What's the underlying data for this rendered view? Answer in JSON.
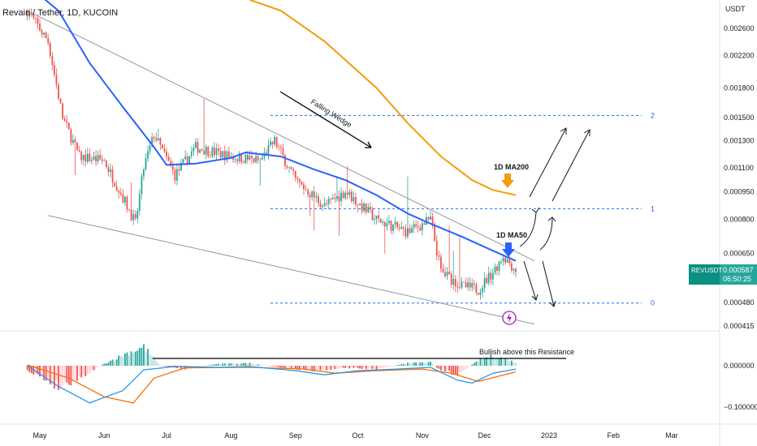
{
  "header": {
    "title": "Revain / Tether, 1D, KUCOIN",
    "currency": "USDT"
  },
  "colors": {
    "up": "#26a69a",
    "down": "#ef5350",
    "ma50": "#2962ff",
    "ma200": "#f29d0c",
    "level": "#2962ff",
    "wedge": "#9598a1",
    "macd": "#2196f3",
    "signal": "#ff6d00",
    "hist_up_strong": "#26a69a",
    "hist_up_weak": "#b2dfdb",
    "hist_down_strong": "#ef5350",
    "hist_down_weak": "#ffcdd2"
  },
  "chart_data": [
    {
      "type": "candlestick",
      "title": "Revain / Tether, 1D, KUCOIN",
      "symbol": "REVUSDT",
      "last_price": "0.000587",
      "countdown": "06:50:25",
      "ylim": [
        0.000405,
        0.00292
      ],
      "y_scale": "log",
      "y_ticks": [
        "0.002600",
        "0.002200",
        "0.001800",
        "0.001500",
        "0.001300",
        "0.001100",
        "0.000950",
        "0.000800",
        "0.000650",
        "0.000480",
        "0.000415"
      ],
      "x_labels": [
        "May",
        "Jun",
        "Jul",
        "Aug",
        "Sep",
        "Oct",
        "Nov",
        "Dec",
        "2023",
        "Feb",
        "Mar"
      ],
      "price_anchors": [
        {
          "date": "2022-04-25",
          "price": 0.0029
        },
        {
          "date": "2022-05-05",
          "price": 0.0024
        },
        {
          "date": "2022-05-12",
          "price": 0.0015
        },
        {
          "date": "2022-05-20",
          "price": 0.00118
        },
        {
          "date": "2022-06-01",
          "price": 0.00115
        },
        {
          "date": "2022-06-13",
          "price": 0.00085
        },
        {
          "date": "2022-06-16",
          "price": 0.00078
        },
        {
          "date": "2022-06-20",
          "price": 0.0011
        },
        {
          "date": "2022-06-25",
          "price": 0.00135
        },
        {
          "date": "2022-07-05",
          "price": 0.00105
        },
        {
          "date": "2022-07-15",
          "price": 0.00125
        },
        {
          "date": "2022-08-01",
          "price": 0.00118
        },
        {
          "date": "2022-08-15",
          "price": 0.00115
        },
        {
          "date": "2022-08-22",
          "price": 0.0013
        },
        {
          "date": "2022-09-01",
          "price": 0.00102
        },
        {
          "date": "2022-09-15",
          "price": 0.00087
        },
        {
          "date": "2022-09-25",
          "price": 0.00095
        },
        {
          "date": "2022-10-10",
          "price": 0.0008
        },
        {
          "date": "2022-10-25",
          "price": 0.00074
        },
        {
          "date": "2022-11-05",
          "price": 0.0008
        },
        {
          "date": "2022-11-10",
          "price": 0.00058
        },
        {
          "date": "2022-11-20",
          "price": 0.00053
        },
        {
          "date": "2022-11-28",
          "price": 0.00052
        },
        {
          "date": "2022-12-05",
          "price": 0.00058
        },
        {
          "date": "2022-12-10",
          "price": 0.00064
        },
        {
          "date": "2022-12-16",
          "price": 0.000587
        }
      ],
      "ma50": [
        {
          "date": "2022-04-25",
          "price": 0.0034
        },
        {
          "date": "2022-05-10",
          "price": 0.0029
        },
        {
          "date": "2022-05-25",
          "price": 0.0021
        },
        {
          "date": "2022-06-10",
          "price": 0.0016
        },
        {
          "date": "2022-06-25",
          "price": 0.00125
        },
        {
          "date": "2022-07-01",
          "price": 0.00112
        },
        {
          "date": "2022-07-15",
          "price": 0.00113
        },
        {
          "date": "2022-08-01",
          "price": 0.00117
        },
        {
          "date": "2022-08-08",
          "price": 0.00121
        },
        {
          "date": "2022-08-25",
          "price": 0.00118
        },
        {
          "date": "2022-09-10",
          "price": 0.00109
        },
        {
          "date": "2022-09-25",
          "price": 0.00102
        },
        {
          "date": "2022-10-10",
          "price": 0.00093
        },
        {
          "date": "2022-10-25",
          "price": 0.00083
        },
        {
          "date": "2022-11-05",
          "price": 0.00078
        },
        {
          "date": "2022-11-20",
          "price": 0.00072
        },
        {
          "date": "2022-12-05",
          "price": 0.00066
        },
        {
          "date": "2022-12-16",
          "price": 0.00062
        }
      ],
      "ma200": [
        {
          "date": "2022-08-10",
          "price": 0.0031
        },
        {
          "date": "2022-08-25",
          "price": 0.0029
        },
        {
          "date": "2022-09-15",
          "price": 0.0024
        },
        {
          "date": "2022-10-10",
          "price": 0.0018
        },
        {
          "date": "2022-10-25",
          "price": 0.00145
        },
        {
          "date": "2022-11-10",
          "price": 0.00118
        },
        {
          "date": "2022-11-25",
          "price": 0.00102
        },
        {
          "date": "2022-12-05",
          "price": 0.00096
        },
        {
          "date": "2022-12-16",
          "price": 0.00093
        }
      ],
      "levels": [
        {
          "label": "2",
          "price": 0.00152
        },
        {
          "label": "1",
          "price": 0.000855
        },
        {
          "label": "0",
          "price": 0.000478
        }
      ],
      "wedge": [
        {
          "from": {
            "date": "2022-04-25",
            "price": 0.0029
          },
          "to": {
            "date": "2022-12-25",
            "price": 0.00062
          }
        },
        {
          "from": {
            "date": "2022-05-05",
            "price": 0.00082
          },
          "to": {
            "date": "2022-12-25",
            "price": 0.00042
          }
        }
      ],
      "annotations": {
        "falling_wedge": "Falling Wedge",
        "ma200_label": "1D MA200",
        "ma50_label": "1D MA50"
      }
    },
    {
      "type": "macd",
      "ylim": [
        -0.12,
        0.06
      ],
      "y_ticks": [
        "0.000000",
        "−0.100000"
      ],
      "resistance_value": 0.014,
      "resistance_label": "Bullish above this Resistance",
      "hist_anchors": [
        {
          "date": "2022-04-25",
          "value": -0.01
        },
        {
          "date": "2022-05-10",
          "value": -0.05
        },
        {
          "date": "2022-05-20",
          "value": -0.03
        },
        {
          "date": "2022-06-01",
          "value": 0.005
        },
        {
          "date": "2022-06-12",
          "value": 0.03
        },
        {
          "date": "2022-06-20",
          "value": 0.045
        },
        {
          "date": "2022-06-28",
          "value": 0.0
        },
        {
          "date": "2022-07-10",
          "value": -0.008
        },
        {
          "date": "2022-07-25",
          "value": 0.004
        },
        {
          "date": "2022-08-10",
          "value": 0.006
        },
        {
          "date": "2022-08-25",
          "value": -0.004
        },
        {
          "date": "2022-09-10",
          "value": -0.012
        },
        {
          "date": "2022-09-25",
          "value": -0.005
        },
        {
          "date": "2022-10-10",
          "value": -0.008
        },
        {
          "date": "2022-10-25",
          "value": 0.006
        },
        {
          "date": "2022-11-05",
          "value": 0.008
        },
        {
          "date": "2022-11-10",
          "value": -0.012
        },
        {
          "date": "2022-11-18",
          "value": -0.02
        },
        {
          "date": "2022-11-28",
          "value": 0.012
        },
        {
          "date": "2022-12-05",
          "value": 0.024
        },
        {
          "date": "2022-12-16",
          "value": 0.008
        }
      ],
      "macd": [
        {
          "date": "2022-04-25",
          "value": 0.0
        },
        {
          "date": "2022-05-10",
          "value": -0.05
        },
        {
          "date": "2022-05-25",
          "value": -0.09
        },
        {
          "date": "2022-06-10",
          "value": -0.06
        },
        {
          "date": "2022-06-20",
          "value": -0.01
        },
        {
          "date": "2022-07-05",
          "value": -0.002
        },
        {
          "date": "2022-07-25",
          "value": -0.004
        },
        {
          "date": "2022-08-10",
          "value": -0.002
        },
        {
          "date": "2022-09-01",
          "value": -0.012
        },
        {
          "date": "2022-09-15",
          "value": -0.022
        },
        {
          "date": "2022-10-01",
          "value": -0.012
        },
        {
          "date": "2022-10-20",
          "value": -0.008
        },
        {
          "date": "2022-11-05",
          "value": -0.004
        },
        {
          "date": "2022-11-18",
          "value": -0.035
        },
        {
          "date": "2022-11-25",
          "value": -0.042
        },
        {
          "date": "2022-12-05",
          "value": -0.018
        },
        {
          "date": "2022-12-16",
          "value": -0.008
        }
      ],
      "signal": [
        {
          "date": "2022-04-25",
          "value": 0.002
        },
        {
          "date": "2022-05-15",
          "value": -0.03
        },
        {
          "date": "2022-06-01",
          "value": -0.075
        },
        {
          "date": "2022-06-15",
          "value": -0.09
        },
        {
          "date": "2022-06-25",
          "value": -0.03
        },
        {
          "date": "2022-07-10",
          "value": -0.005
        },
        {
          "date": "2022-08-10",
          "value": -0.004
        },
        {
          "date": "2022-09-05",
          "value": -0.008
        },
        {
          "date": "2022-09-20",
          "value": -0.018
        },
        {
          "date": "2022-10-10",
          "value": -0.012
        },
        {
          "date": "2022-11-01",
          "value": -0.008
        },
        {
          "date": "2022-11-15",
          "value": -0.018
        },
        {
          "date": "2022-11-28",
          "value": -0.038
        },
        {
          "date": "2022-12-08",
          "value": -0.025
        },
        {
          "date": "2022-12-16",
          "value": -0.015
        }
      ]
    }
  ]
}
